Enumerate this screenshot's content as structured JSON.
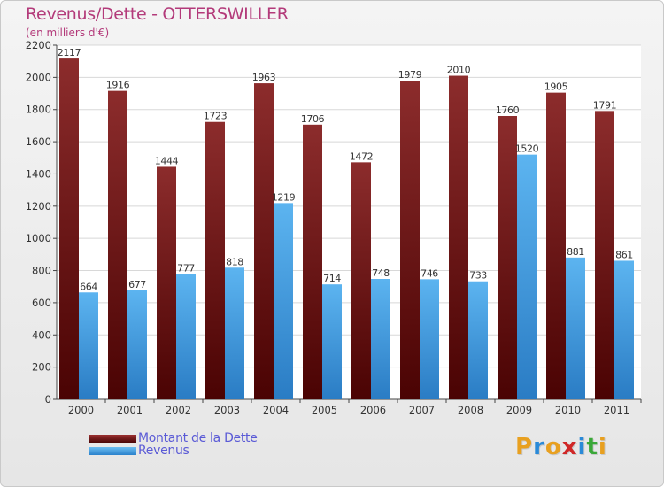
{
  "chart_data": {
    "type": "bar",
    "title": "Revenus/Dette - OTTERSWILLER",
    "subtitle": "(en milliers d'€)",
    "categories": [
      "2000",
      "2001",
      "2002",
      "2003",
      "2004",
      "2005",
      "2006",
      "2007",
      "2008",
      "2009",
      "2010",
      "2011"
    ],
    "series": [
      {
        "name": "Montant de la Dette",
        "color": "#7a1a1a",
        "values": [
          2117,
          1916,
          1444,
          1723,
          1963,
          1706,
          1472,
          1979,
          2010,
          1760,
          1905,
          1791
        ]
      },
      {
        "name": "Revenus",
        "color": "#4aa3e8",
        "values": [
          664,
          677,
          777,
          818,
          1219,
          714,
          748,
          746,
          733,
          1520,
          881,
          861
        ]
      }
    ],
    "ylim": [
      0,
      2200
    ],
    "yticks": [
      0,
      200,
      400,
      600,
      800,
      1000,
      1200,
      1400,
      1600,
      1800,
      2000,
      2200
    ],
    "grid": true,
    "legend": "bottom-left"
  },
  "logo": {
    "letters": [
      "P",
      "r",
      "o",
      "x",
      "i",
      "t",
      "i"
    ],
    "colors": [
      "#e8a020",
      "#2a8ad8",
      "#e8a020",
      "#d02828",
      "#2a8ad8",
      "#3aa838",
      "#e8a020"
    ]
  }
}
